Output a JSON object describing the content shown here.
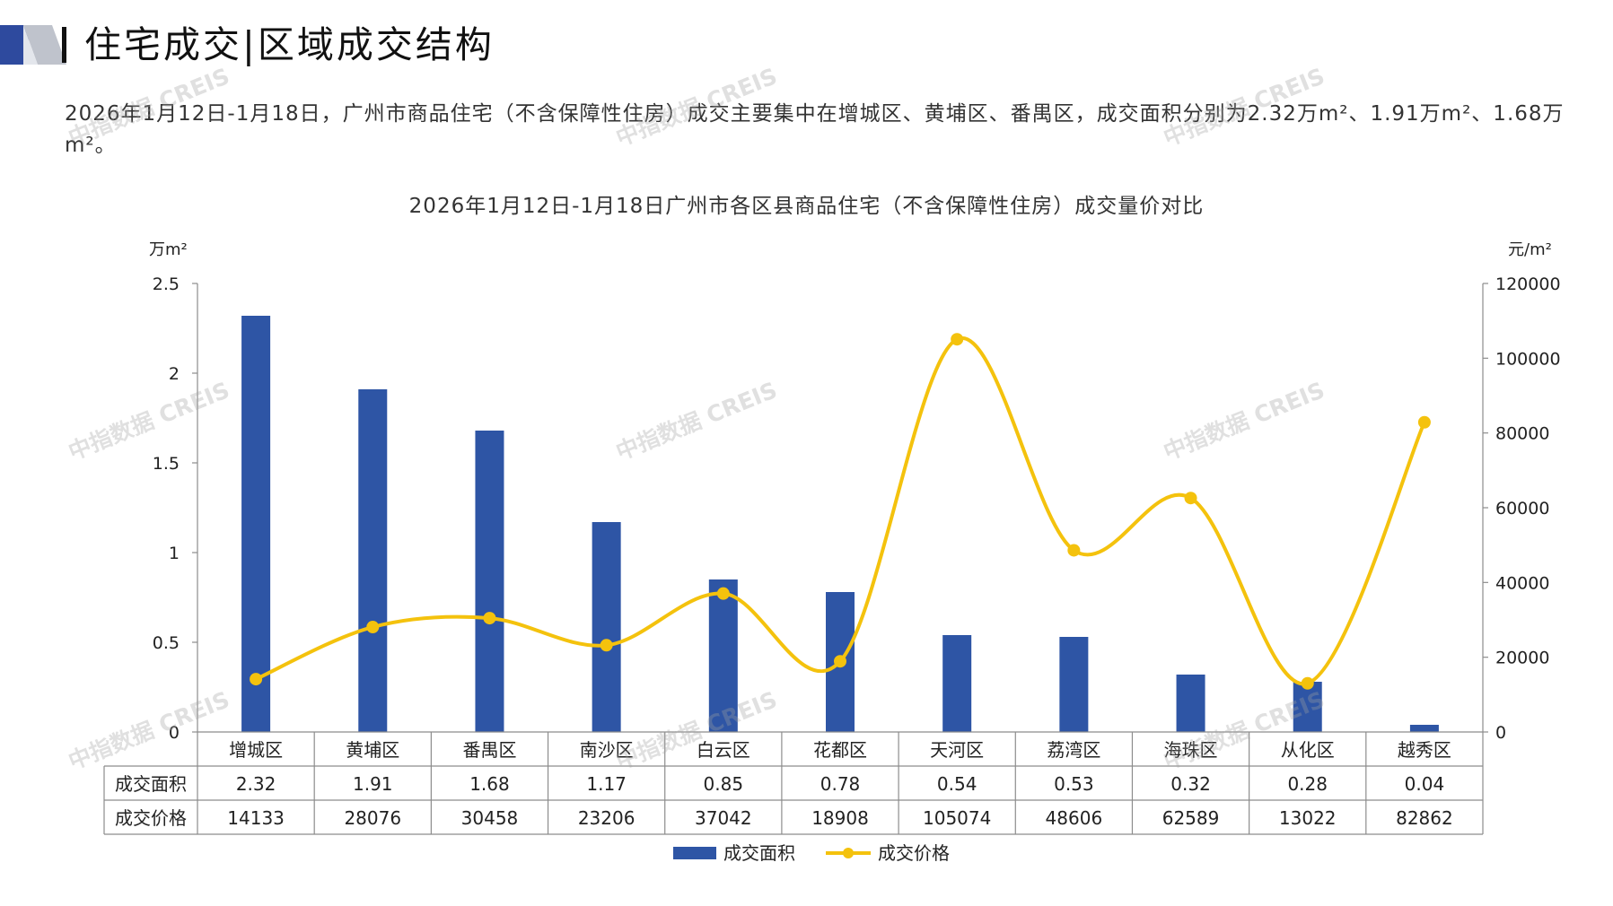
{
  "header": {
    "title": "住宅成交|区域成交结构"
  },
  "summary": "2026年1月12日-1月18日，广州市商品住宅（不含保障性住房）成交主要集中在增城区、黄埔区、番禺区，成交面积分别为2.32万m²、1.91万m²、1.68万m²。",
  "watermark": "中指数据 CREIS",
  "colors": {
    "bar": "#2E55A5",
    "line": "#F4C20D",
    "grid": "#8C8C8C",
    "logo_blue": "#2E4A9E",
    "logo_gray": "#BFC3CC"
  },
  "chart_data": {
    "type": "bar",
    "title": "2026年1月12日-1月18日广州市各区县商品住宅（不含保障性住房）成交量价对比",
    "ylabel_left": "万m²",
    "ylabel_right": "元/m²",
    "y_left_ticks": [
      "0",
      "0.5",
      "1",
      "1.5",
      "2",
      "2.5"
    ],
    "y_right_ticks": [
      "0",
      "20000",
      "40000",
      "60000",
      "80000",
      "100000",
      "120000"
    ],
    "ylim_left": [
      0,
      2.5
    ],
    "ylim_right": [
      0,
      120000
    ],
    "categories": [
      "增城区",
      "黄埔区",
      "番禺区",
      "南沙区",
      "白云区",
      "花都区",
      "天河区",
      "荔湾区",
      "海珠区",
      "从化区",
      "越秀区"
    ],
    "series": [
      {
        "name": "成交面积",
        "type": "bar",
        "axis": "left",
        "values": [
          2.32,
          1.91,
          1.68,
          1.17,
          0.85,
          0.78,
          0.54,
          0.53,
          0.32,
          0.28,
          0.04
        ],
        "labels": [
          "2.32",
          "1.91",
          "1.68",
          "1.17",
          "0.85",
          "0.78",
          "0.54",
          "0.53",
          "0.32",
          "0.28",
          "0.04"
        ]
      },
      {
        "name": "成交价格",
        "type": "line",
        "axis": "right",
        "values": [
          14133,
          28076,
          30458,
          23206,
          37042,
          18908,
          105074,
          48606,
          62589,
          13022,
          82862
        ],
        "labels": [
          "14133",
          "28076",
          "30458",
          "23206",
          "37042",
          "18908",
          "105074",
          "48606",
          "62589",
          "13022",
          "82862"
        ]
      }
    ],
    "data_table": true,
    "legend_position": "bottom",
    "grid": false
  }
}
